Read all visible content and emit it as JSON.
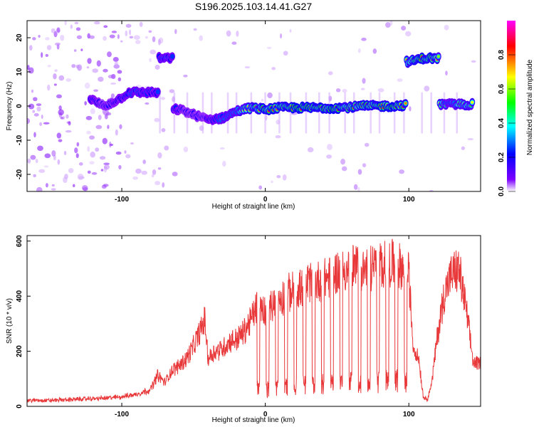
{
  "title": "S196.2025.103.14.41.G27",
  "colors": {
    "signal": "#e8383a",
    "axis": "#000000",
    "background": "#ffffff"
  },
  "chart_data": [
    {
      "type": "heatmap",
      "title": "S196.2025.103.14.41.G27",
      "xlabel": "Height of straight line (km)",
      "ylabel": "Frequency (Hz)",
      "xlim": [
        -166,
        150
      ],
      "ylim": [
        -25,
        25
      ],
      "xticks": [
        {
          "value": -100,
          "label": "-100"
        },
        {
          "value": 0,
          "label": "0"
        },
        {
          "value": 100,
          "label": "100"
        }
      ],
      "yticks": [
        {
          "value": -20,
          "label": "-20"
        },
        {
          "value": -10,
          "label": "-10"
        },
        {
          "value": 0,
          "label": "0"
        },
        {
          "value": 10,
          "label": "10"
        },
        {
          "value": 20,
          "label": "20"
        }
      ],
      "colorbar": {
        "label": "Normalized spectral amplitude",
        "range": [
          0,
          1
        ],
        "ticks": [
          {
            "value": 0.0,
            "label": "0.0"
          },
          {
            "value": 0.2,
            "label": "0.2"
          },
          {
            "value": 0.4,
            "label": "0.4"
          },
          {
            "value": 0.6,
            "label": "0.6"
          },
          {
            "value": 0.8,
            "label": "0.8"
          }
        ],
        "colormap": [
          "#ffffff",
          "#7d00ff",
          "#0000ff",
          "#00ffff",
          "#00ff00",
          "#ffff00",
          "#ff0000",
          "#ff00ff"
        ]
      },
      "ridge": [
        {
          "x": -122,
          "y": 2,
          "a": 0.45
        },
        {
          "x": -112,
          "y": 0,
          "a": 0.4
        },
        {
          "x": -102,
          "y": 2,
          "a": 0.45
        },
        {
          "x": -95,
          "y": 4,
          "a": 0.55
        },
        {
          "x": -88,
          "y": 4,
          "a": 0.55
        },
        {
          "x": -80,
          "y": 4,
          "a": 0.5
        },
        {
          "x": -68,
          "y": 14,
          "a": 0.55
        },
        {
          "x": -60,
          "y": -1,
          "a": 0.45
        },
        {
          "x": -50,
          "y": -2.5,
          "a": 0.4
        },
        {
          "x": -40,
          "y": -4,
          "a": 0.45
        },
        {
          "x": -30,
          "y": -3.5,
          "a": 0.55
        },
        {
          "x": -20,
          "y": -1.5,
          "a": 0.65
        },
        {
          "x": -10,
          "y": -0.5,
          "a": 0.75
        },
        {
          "x": 0,
          "y": -1,
          "a": 0.85
        },
        {
          "x": 10,
          "y": -0.5,
          "a": 0.85
        },
        {
          "x": 20,
          "y": -0.5,
          "a": 0.9
        },
        {
          "x": 30,
          "y": -0.5,
          "a": 0.9
        },
        {
          "x": 40,
          "y": -0.5,
          "a": 0.9
        },
        {
          "x": 50,
          "y": -0.5,
          "a": 0.9
        },
        {
          "x": 60,
          "y": -0.3,
          "a": 0.85
        },
        {
          "x": 70,
          "y": 0,
          "a": 0.85
        },
        {
          "x": 80,
          "y": 0,
          "a": 0.9
        },
        {
          "x": 90,
          "y": 0,
          "a": 0.9
        },
        {
          "x": 97,
          "y": 0.3,
          "a": 0.85
        },
        {
          "x": 100,
          "y": 13,
          "a": 0.75
        },
        {
          "x": 110,
          "y": 14,
          "a": 0.9
        },
        {
          "x": 118,
          "y": 14,
          "a": 0.85
        },
        {
          "x": 125,
          "y": 0.5,
          "a": 0.6
        },
        {
          "x": 135,
          "y": 0.5,
          "a": 0.7
        },
        {
          "x": 145,
          "y": 0.5,
          "a": 0.7
        }
      ]
    },
    {
      "type": "line",
      "xlabel": "Height of straight line (km)",
      "ylabel": "SNR (10 * v/v)",
      "xlim": [
        -166,
        150
      ],
      "ylim": [
        0,
        620
      ],
      "xticks": [
        {
          "value": -100,
          "label": "-100"
        },
        {
          "value": 0,
          "label": "0"
        },
        {
          "value": 100,
          "label": "100"
        }
      ],
      "yticks": [
        {
          "value": 0,
          "label": "0"
        },
        {
          "value": 200,
          "label": "200"
        },
        {
          "value": 400,
          "label": "400"
        },
        {
          "value": 600,
          "label": "600"
        }
      ],
      "series": [
        {
          "color": "#e8383a",
          "x": [
            -166,
            -150,
            -130,
            -110,
            -100,
            -90,
            -80,
            -75,
            -70,
            -65,
            -60,
            -55,
            -50,
            -45,
            -42,
            -40,
            -35,
            -30,
            -25,
            -20,
            -15,
            -10,
            -5,
            0,
            5,
            10,
            15,
            20,
            25,
            30,
            35,
            40,
            45,
            50,
            55,
            60,
            65,
            70,
            75,
            80,
            85,
            90,
            95,
            100,
            103,
            107,
            110,
            113,
            116,
            120,
            125,
            130,
            135,
            140,
            145,
            150
          ],
          "y": [
            25,
            25,
            30,
            35,
            40,
            50,
            70,
            130,
            100,
            150,
            170,
            200,
            250,
            320,
            360,
            200,
            230,
            240,
            270,
            280,
            310,
            360,
            430,
            400,
            420,
            450,
            470,
            480,
            490,
            510,
            520,
            530,
            540,
            560,
            570,
            580,
            575,
            570,
            580,
            590,
            600,
            590,
            580,
            550,
            250,
            200,
            40,
            30,
            100,
            300,
            480,
            550,
            570,
            400,
            180,
            180
          ]
        }
      ]
    }
  ]
}
